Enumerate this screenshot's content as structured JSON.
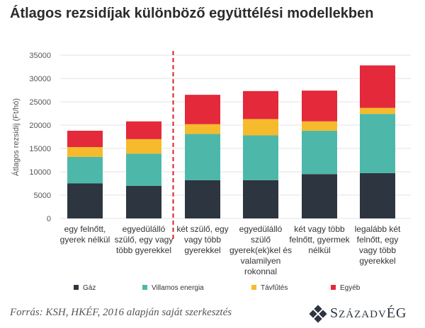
{
  "title": "Átlagos rezsidíjak különböző együttélési modellekben",
  "source": "Forrás: KSH, HKÉF, 2016 alapján saját szerkesztés",
  "logo": {
    "text": "SzázadvéG",
    "first": "S",
    "mid1": "ZÁZADV",
    "mid2": "É",
    "last": "G"
  },
  "colors": {
    "gaz": "#2d3540",
    "villamos": "#4db8aa",
    "tavfutes": "#f5bb2c",
    "egyeb": "#e3293a",
    "divider": "#d9232d",
    "grid": "#e3e3e3",
    "axis_text": "#555555"
  },
  "chart_data": {
    "type": "bar",
    "stacked": true,
    "ylabel": "Átlagos rezsidíj (Ft/hó)",
    "xlabel": "",
    "ylim": [
      0,
      35000
    ],
    "yticks": [
      "0",
      "5000",
      "10000",
      "15000",
      "20000",
      "25000",
      "30000",
      "35000"
    ],
    "grid": true,
    "legend_position": "bottom",
    "categories": [
      [
        "egy felnőtt,",
        "gyerek nélkül"
      ],
      [
        "egyedülálló",
        "szülő, egy vagy",
        "több gyerekkel"
      ],
      [
        "két szülő, egy",
        "vagy több",
        "gyerekkel"
      ],
      [
        "egyedülálló",
        "szülő",
        "gyerek(ek)kel és",
        "valamilyen",
        "rokonnal"
      ],
      [
        "két vagy több",
        "felnőtt, gyermek",
        "nélkül"
      ],
      [
        "legalább két",
        "felnőtt, egy",
        "vagy több",
        "gyerekkel"
      ]
    ],
    "series": [
      {
        "name": "Gáz",
        "color": "#2d3540",
        "values": [
          7500,
          7000,
          8200,
          8200,
          9500,
          9700
        ]
      },
      {
        "name": "Villamos energia",
        "color": "#4db8aa",
        "values": [
          5700,
          6900,
          9900,
          9600,
          9300,
          12700
        ]
      },
      {
        "name": "Távfűtés",
        "color": "#f5bb2c",
        "values": [
          2100,
          3100,
          2100,
          3500,
          2000,
          1300
        ]
      },
      {
        "name": "Egyéb",
        "color": "#e3293a",
        "values": [
          3500,
          3800,
          6300,
          6000,
          6600,
          9100
        ]
      }
    ],
    "divider_after_index": 1
  }
}
